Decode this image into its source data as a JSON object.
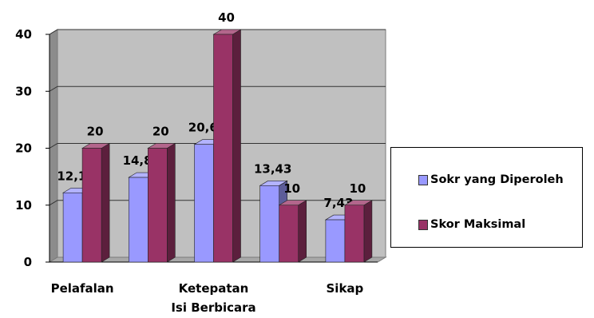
{
  "chart_data": {
    "type": "bar",
    "title": "",
    "xlabel": "",
    "ylabel": "",
    "ylim": [
      0,
      40
    ],
    "yticks": [
      "0",
      "10",
      "20",
      "30",
      "40"
    ],
    "categories": [
      "Pelafalan",
      "",
      "Ketepatan Isi Berbicara",
      "",
      "Sikap"
    ],
    "category_lines": [
      [
        "Pelafalan"
      ],
      [],
      [
        "Ketepatan",
        "Isi Berbicara"
      ],
      [],
      [
        "Sikap"
      ]
    ],
    "series": [
      {
        "name": "Sokr yang Diperoleh",
        "values": [
          12.17,
          14.87,
          20.67,
          13.43,
          7.43
        ],
        "labels": [
          "12,17",
          "14,87",
          "20,67",
          "13,43",
          "7,43"
        ],
        "color": "#9999ff"
      },
      {
        "name": "Skor Maksimal",
        "values": [
          20,
          20,
          40,
          10,
          10
        ],
        "labels": [
          "20",
          "20",
          "40",
          "10",
          "10"
        ],
        "color": "#993366"
      }
    ],
    "grid": true,
    "legend_position": "right",
    "style": "3d-clustered-column"
  }
}
